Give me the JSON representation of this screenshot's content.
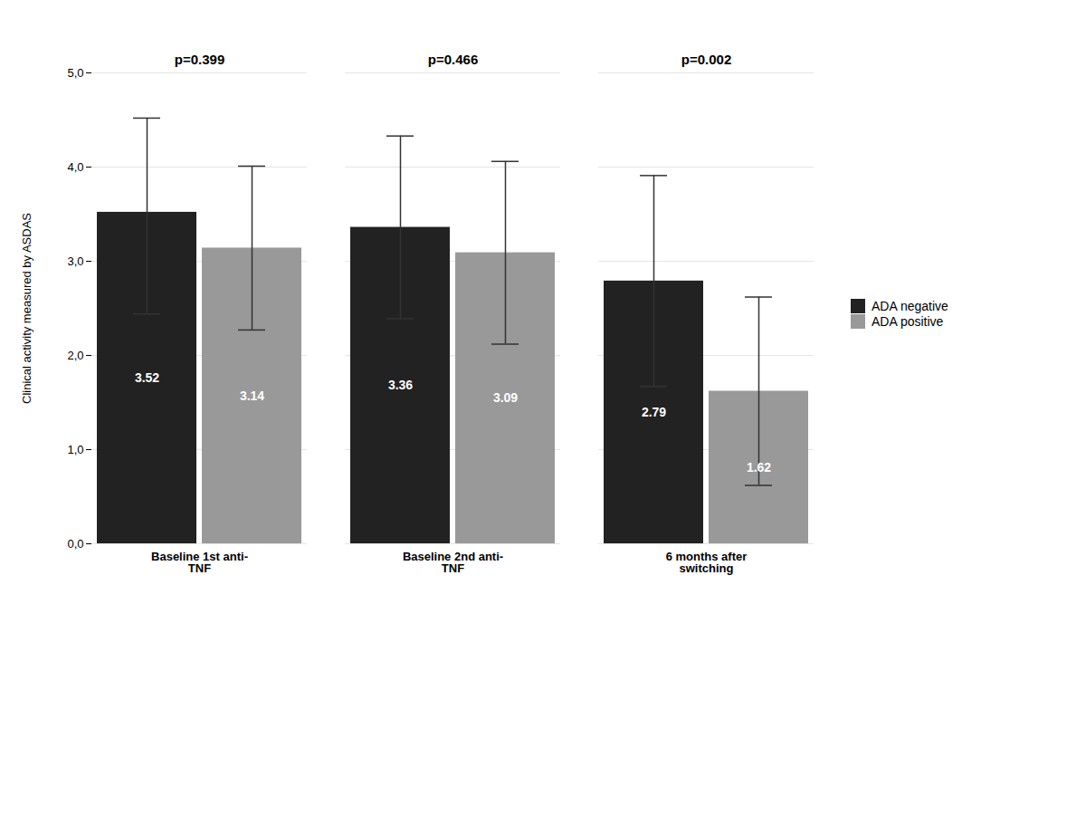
{
  "chart_data": {
    "type": "bar",
    "categories": [
      "Baseline 1st anti-\nTNF",
      "Baseline 2nd anti-\nTNF",
      "6 months after\nswitching"
    ],
    "series": [
      {
        "name": "ADA negative",
        "color": "#222222",
        "values": [
          3.52,
          3.36,
          2.79
        ],
        "err_upper": [
          1.0,
          0.97,
          1.12
        ],
        "err_lower": [
          1.08,
          0.97,
          1.12
        ]
      },
      {
        "name": "ADA positive",
        "color": "#999999",
        "values": [
          3.14,
          3.09,
          1.62
        ],
        "err_upper": [
          0.87,
          0.97,
          1.0
        ],
        "err_lower": [
          0.87,
          0.97,
          1.0
        ]
      }
    ],
    "annotations": [
      "p=0.399",
      "p=0.466",
      "p=0.002"
    ],
    "ylabel": "Clinical activity measured by ASDAS",
    "ylim": [
      0,
      5.0
    ],
    "yticks": [
      {
        "value": 0.0,
        "label": "0,0"
      },
      {
        "value": 1.0,
        "label": "1,0"
      },
      {
        "value": 2.0,
        "label": "2,0"
      },
      {
        "value": 3.0,
        "label": "3,0"
      },
      {
        "value": 4.0,
        "label": "4,0"
      },
      {
        "value": 5.0,
        "label": "5,0"
      }
    ],
    "grid": true,
    "legend": "right",
    "data_labels": true
  }
}
